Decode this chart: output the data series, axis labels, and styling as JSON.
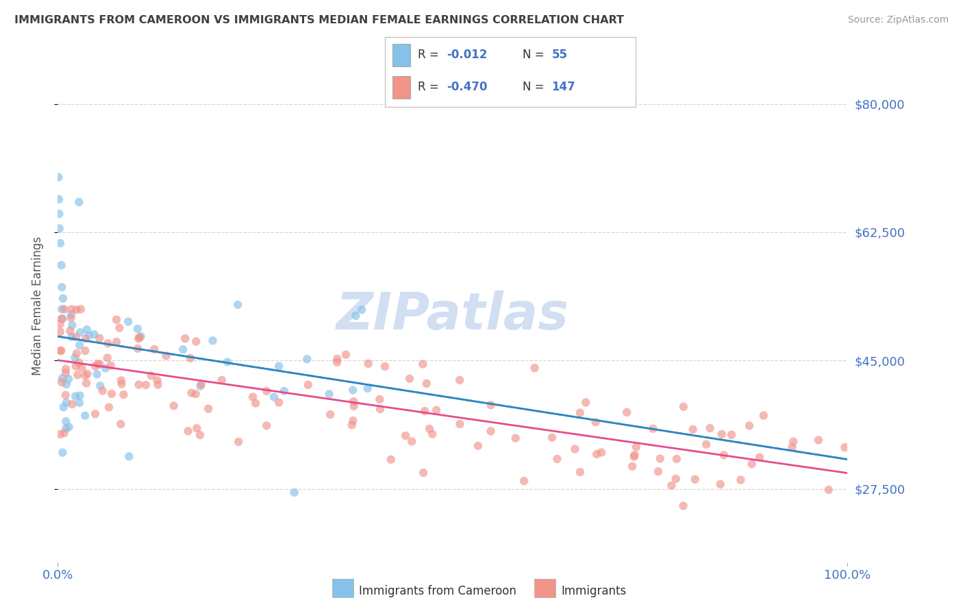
{
  "title": "IMMIGRANTS FROM CAMEROON VS IMMIGRANTS MEDIAN FEMALE EARNINGS CORRELATION CHART",
  "source": "Source: ZipAtlas.com",
  "ylabel": "Median Female Earnings",
  "xlim": [
    0.0,
    100.0
  ],
  "ylim": [
    17500,
    87500
  ],
  "yticks": [
    27500,
    45000,
    62500,
    80000
  ],
  "ytick_labels": [
    "$27,500",
    "$45,000",
    "$62,500",
    "$80,000"
  ],
  "xtick_labels": [
    "0.0%",
    "100.0%"
  ],
  "blue_R": -0.012,
  "blue_N": 55,
  "pink_R": -0.47,
  "pink_N": 147,
  "blue_color": "#85c1e9",
  "pink_color": "#f1948a",
  "blue_line_color": "#2e86c1",
  "pink_line_color": "#e74c8b",
  "label_blue": "Immigrants from Cameroon",
  "label_pink": "Immigrants",
  "watermark": "ZIPatlas",
  "watermark_color": "#aec6e8",
  "background_color": "#ffffff",
  "grid_color": "#cccccc",
  "axis_label_color": "#4472c4",
  "title_color": "#404040",
  "blue_seed": 42,
  "pink_seed": 99
}
